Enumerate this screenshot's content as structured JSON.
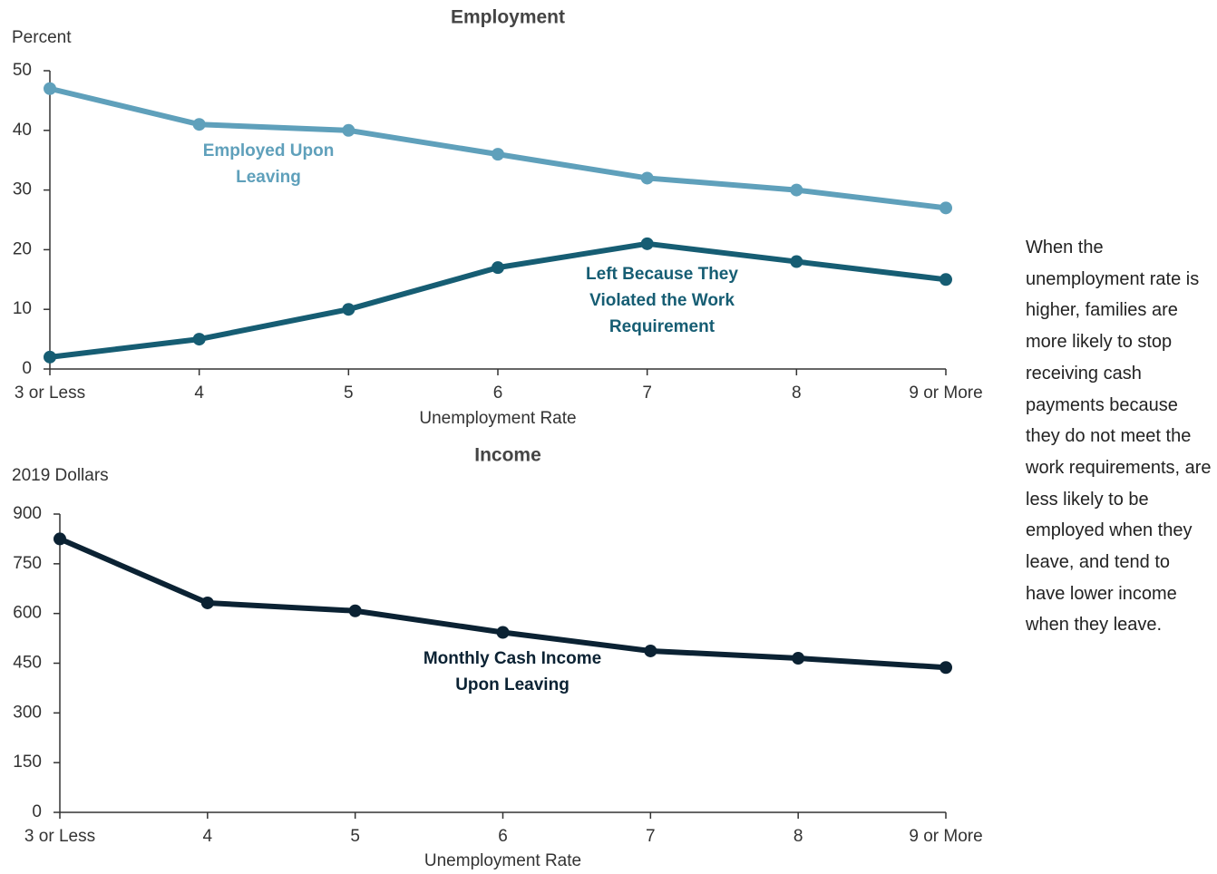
{
  "chart_data": [
    {
      "type": "line",
      "title": "Employment",
      "y_label": "Percent",
      "x_label": "Unemployment Rate",
      "categories": [
        "3 or Less",
        "4",
        "5",
        "6",
        "7",
        "8",
        "9 or More"
      ],
      "ylim": [
        0,
        50
      ],
      "yticks": [
        0,
        10,
        20,
        30,
        40,
        50
      ],
      "grid": false,
      "series": [
        {
          "name": "Employed Upon Leaving",
          "color": "#5fa0bb",
          "values": [
            47,
            41,
            40,
            36,
            32,
            30,
            27
          ]
        },
        {
          "name": "Left Because They Violated the Work Requirement",
          "color": "#165d73",
          "values": [
            2,
            5,
            10,
            17,
            21,
            18,
            15
          ]
        }
      ]
    },
    {
      "type": "line",
      "title": "Income",
      "y_label": "2019 Dollars",
      "x_label": "Unemployment Rate",
      "categories": [
        "3 or Less",
        "4",
        "5",
        "6",
        "7",
        "8",
        "9 or More"
      ],
      "ylim": [
        0,
        900
      ],
      "yticks": [
        0,
        150,
        300,
        450,
        600,
        750,
        900
      ],
      "grid": false,
      "series": [
        {
          "name": "Monthly Cash Income Upon Leaving",
          "color": "#0b2233",
          "values": [
            825,
            632,
            608,
            543,
            487,
            465,
            437
          ]
        }
      ]
    }
  ],
  "note": "When the unemployment rate is higher, families are more likely to stop receiving cash payments because they do not meet the work requirements, are less likely to be employed when they leave, and tend to have lower income when they leave."
}
